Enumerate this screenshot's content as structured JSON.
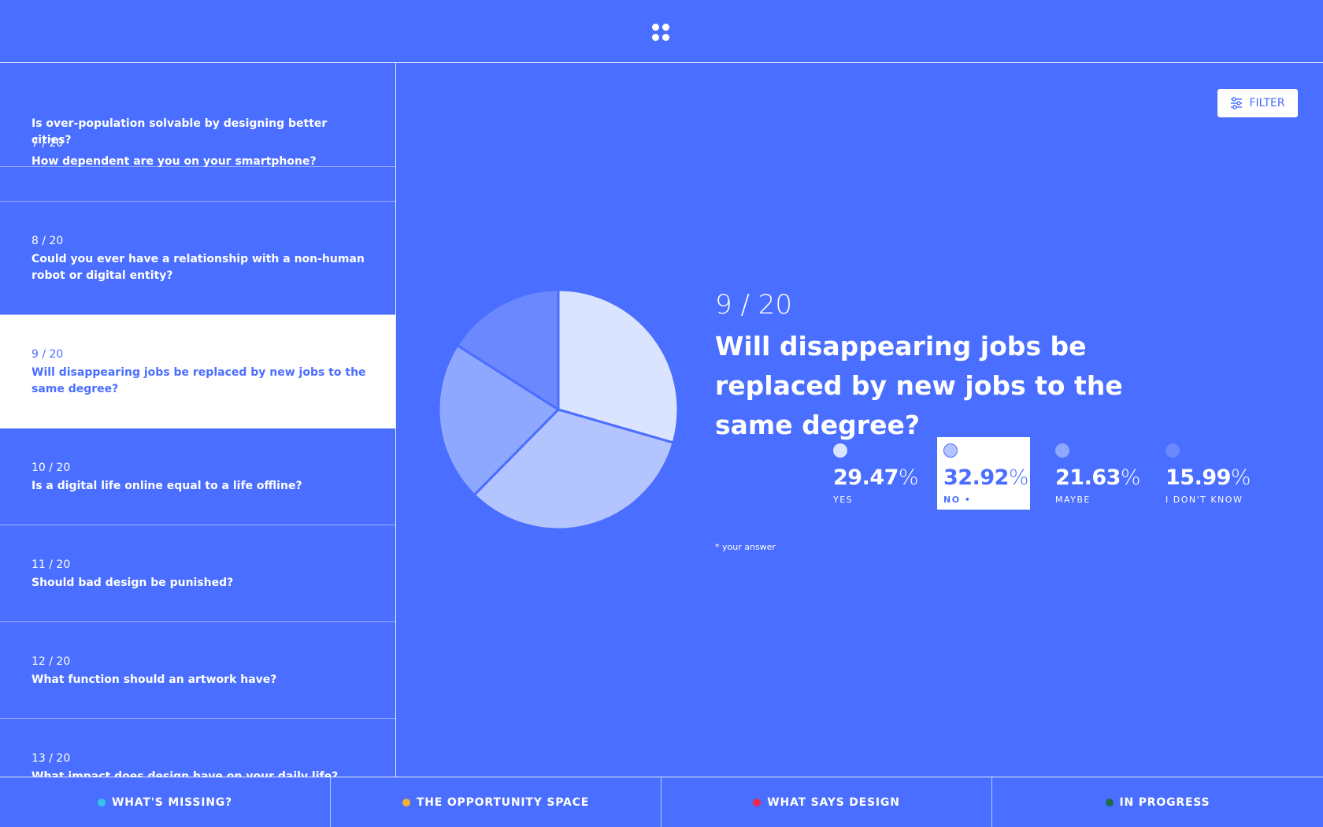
{
  "header": {
    "menu_icon": "grid-dots-icon"
  },
  "sidebar": {
    "items": [
      {
        "number": "",
        "question": "Is over-population solvable by designing better cities?"
      },
      {
        "number": "7 / 20",
        "question": "How dependent are you on your smartphone?"
      },
      {
        "number": "8 / 20",
        "question": "Could you ever have a relationship with a non-human robot or digital entity?"
      },
      {
        "number": "9 / 20",
        "question": "Will disappearing jobs be replaced by new jobs to the same degree?"
      },
      {
        "number": "10 / 20",
        "question": "Is a digital life online equal to a life offline?"
      },
      {
        "number": "11 / 20",
        "question": "Should bad design be punished?"
      },
      {
        "number": "12 / 20",
        "question": "What function should an artwork have?"
      },
      {
        "number": "13 / 20",
        "question": "What impact does design have on your daily life?"
      }
    ],
    "active_index": 3
  },
  "filter": {
    "label": "FILTER",
    "icon": "sliders-icon"
  },
  "question": {
    "number": "9 / 20",
    "title": "Will disappearing jobs be replaced by new jobs to the same degree?",
    "note": "* your answer"
  },
  "answers": [
    {
      "value": "29.47",
      "symbol": "%",
      "label": "YES",
      "color": "#dbe4ff"
    },
    {
      "value": "32.92",
      "symbol": "%",
      "label": "NO •",
      "color": "#b4c4ff",
      "selected": true
    },
    {
      "value": "21.63",
      "symbol": "%",
      "label": "MAYBE",
      "color": "#8ea8ff"
    },
    {
      "value": "15.99",
      "symbol": "%",
      "label": "I DON'T KNOW",
      "color": "#6b88ff"
    }
  ],
  "chart_data": {
    "type": "pie",
    "categories": [
      "YES",
      "NO",
      "MAYBE",
      "I DON'T KNOW"
    ],
    "values": [
      29.47,
      32.92,
      21.63,
      15.99
    ],
    "colors": [
      "#dbe4ff",
      "#b4c4ff",
      "#8ea8ff",
      "#6b88ff"
    ]
  },
  "bottom_tabs": [
    {
      "label": "WHAT'S MISSING?",
      "color": "#35c5e8"
    },
    {
      "label": "THE OPPORTUNITY SPACE",
      "color": "#f2b134"
    },
    {
      "label": "WHAT SAYS DESIGN",
      "color": "#f0264a"
    },
    {
      "label": "IN PROGRESS",
      "color": "#1e6b4e"
    }
  ],
  "colors": {
    "background": "#4a6eff",
    "accent": "#ffffff"
  }
}
